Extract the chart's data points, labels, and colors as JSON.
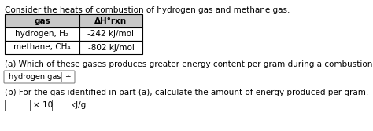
{
  "title": "Consider the heats of combustion of hydrogen gas and methane gas.",
  "table_headers": [
    "gas",
    "ΔH°rxn"
  ],
  "table_rows": [
    [
      "hydrogen, H₂",
      "-242 kJ/mol"
    ],
    [
      "methane, CH₄",
      "-802 kJ/mol"
    ]
  ],
  "part_a_label": "(a) Which of these gases produces greater energy content per gram during a combustion reaction?",
  "part_a_answer": "hydrogen gas",
  "part_b_label": "(b) For the gas identified in part (a), calculate the amount of energy produced per gram.",
  "part_b_times10": "× 10",
  "part_b_units": "kJ/g",
  "bg_color": "#ffffff",
  "text_color": "#000000",
  "table_header_bg": "#c8c8c8",
  "font_size": 7.5
}
